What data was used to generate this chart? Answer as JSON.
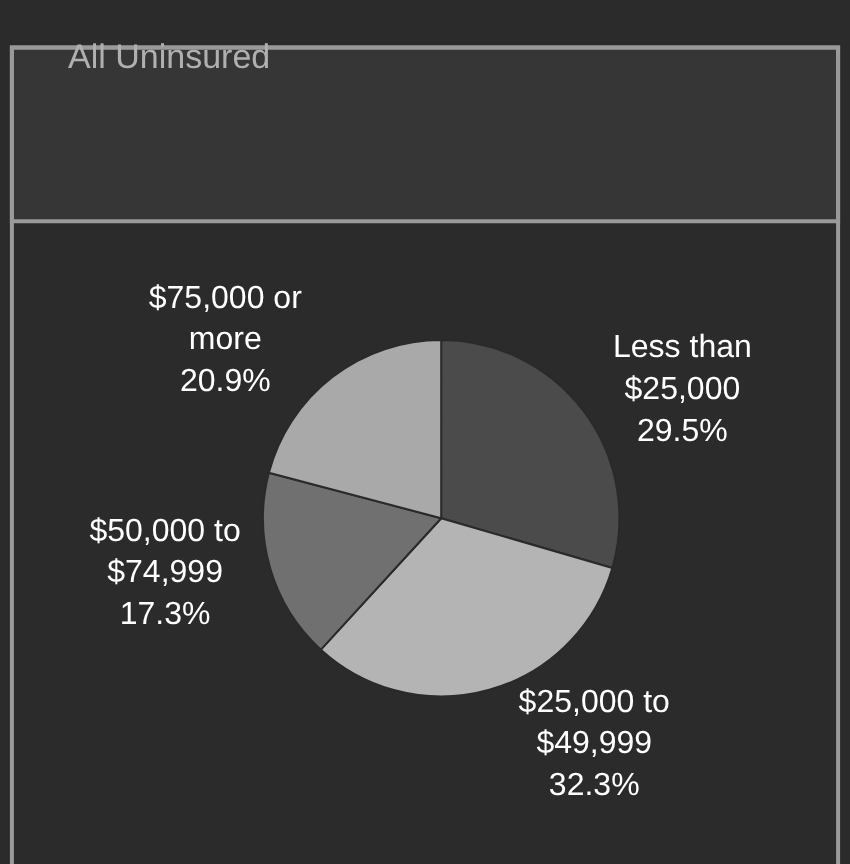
{
  "chart_data": {
    "type": "pie",
    "title": "All Uninsured",
    "categories": [
      "Less than\n$25,000",
      "$25,000 to\n$49,999",
      "$50,000 to\n$74,999",
      "$75,000 or\nmore"
    ],
    "values": [
      29.5,
      32.3,
      17.3,
      20.9
    ],
    "colors": [
      "#4b4b4b",
      "#b4b4b4",
      "#707070",
      "#a9a9a9"
    ],
    "value_labels": [
      "29.5%",
      "32.3%",
      "17.3%",
      "20.9%"
    ],
    "legend": false
  }
}
